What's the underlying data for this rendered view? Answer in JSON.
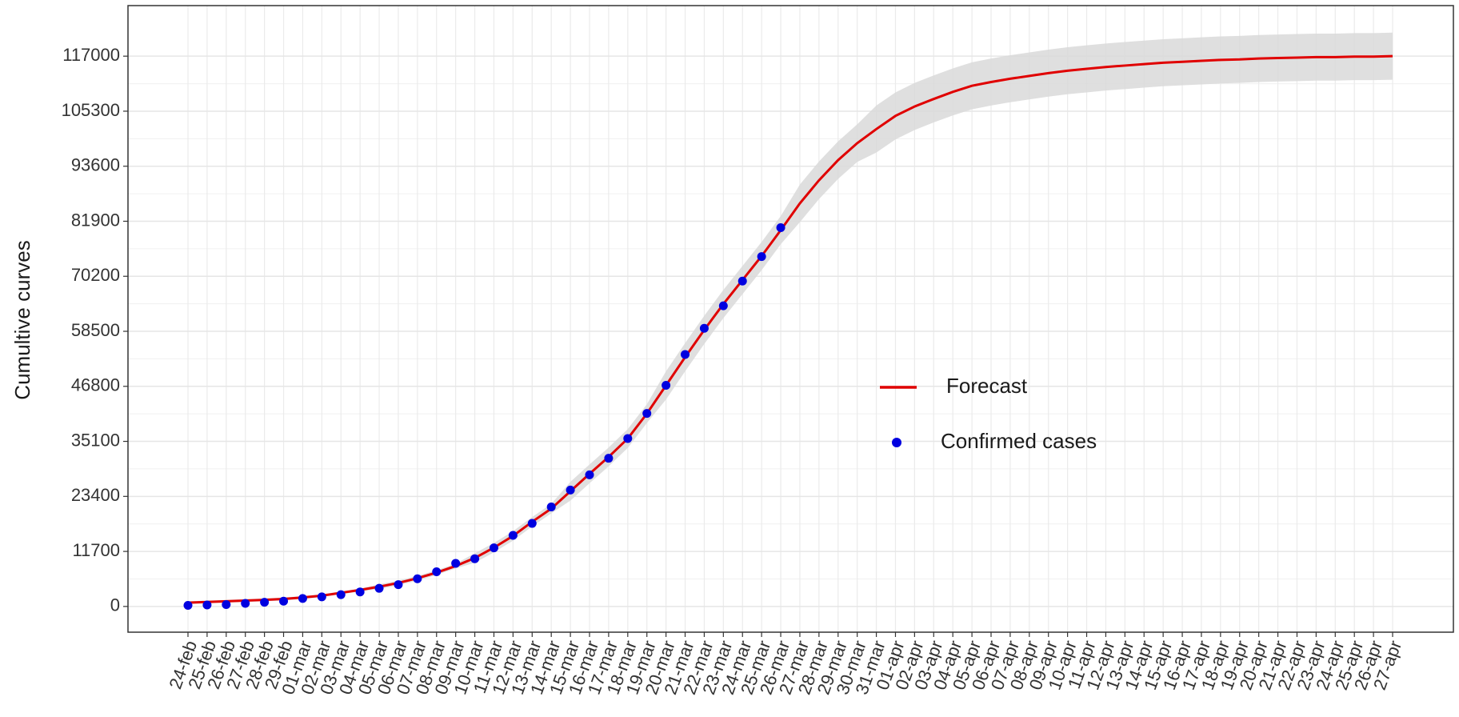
{
  "chart_data": {
    "type": "line",
    "y_label": "Cumultive curves",
    "categories": [
      "24-feb",
      "25-feb",
      "26-feb",
      "27-feb",
      "28-feb",
      "29-feb",
      "01-mar",
      "02-mar",
      "03-mar",
      "04-mar",
      "05-mar",
      "06-mar",
      "07-mar",
      "08-mar",
      "09-mar",
      "10-mar",
      "11-mar",
      "12-mar",
      "13-mar",
      "14-mar",
      "15-mar",
      "16-mar",
      "17-mar",
      "18-mar",
      "19-mar",
      "20-mar",
      "21-mar",
      "22-mar",
      "23-mar",
      "24-mar",
      "25-mar",
      "26-mar",
      "27-mar",
      "28-mar",
      "29-mar",
      "30-mar",
      "31-mar",
      "01-apr",
      "02-apr",
      "03-apr",
      "04-apr",
      "05-apr",
      "06-apr",
      "07-apr",
      "08-apr",
      "09-apr",
      "10-apr",
      "11-apr",
      "12-apr",
      "13-apr",
      "14-apr",
      "15-apr",
      "16-apr",
      "17-apr",
      "18-apr",
      "19-apr",
      "20-apr",
      "21-apr",
      "22-apr",
      "23-apr",
      "24-apr",
      "25-apr",
      "26-apr",
      "27-apr"
    ],
    "series": [
      {
        "name": "Forecast",
        "kind": "line",
        "color": "#e00000",
        "values": [
          800,
          950,
          1100,
          1250,
          1400,
          1600,
          1900,
          2300,
          2900,
          3500,
          4200,
          5000,
          6000,
          7200,
          8600,
          10300,
          12500,
          15000,
          18000,
          20800,
          24500,
          28200,
          31800,
          35700,
          41000,
          47000,
          53000,
          58800,
          64300,
          69400,
          74500,
          80000,
          85700,
          90600,
          94900,
          98500,
          101500,
          104300,
          106300,
          107900,
          109400,
          110700,
          111500,
          112200,
          112800,
          113400,
          113900,
          114300,
          114700,
          115000,
          115300,
          115600,
          115800,
          116000,
          116200,
          116300,
          116500,
          116600,
          116700,
          116800,
          116800,
          116900,
          116900,
          117000
        ]
      },
      {
        "name": "Confirmed cases",
        "kind": "points",
        "color": "#0000e0",
        "values": [
          229,
          322,
          400,
          650,
          888,
          1128,
          1694,
          2036,
          2502,
          3089,
          3858,
          4636,
          5883,
          7375,
          9172,
          10149,
          12462,
          15113,
          17660,
          21157,
          24747,
          27980,
          31506,
          35713,
          41035,
          47021,
          53578,
          59138,
          63927,
          69176,
          74386,
          80539,
          null,
          null,
          null,
          null,
          null,
          null,
          null,
          null,
          null,
          null,
          null,
          null,
          null,
          null,
          null,
          null,
          null,
          null,
          null,
          null,
          null,
          null,
          null,
          null,
          null,
          null,
          null,
          null,
          null,
          null,
          null,
          null
        ]
      }
    ],
    "band": {
      "color": "#d9d9d9",
      "upper": [
        1100,
        1250,
        1400,
        1550,
        1700,
        1900,
        2200,
        2600,
        3200,
        3800,
        4700,
        5500,
        6500,
        7700,
        9100,
        11300,
        13500,
        16000,
        19000,
        21800,
        26500,
        30200,
        33800,
        37700,
        43000,
        50000,
        56000,
        61800,
        67300,
        72400,
        77500,
        83000,
        89700,
        94600,
        98900,
        102500,
        106500,
        109300,
        111300,
        112900,
        114400,
        115700,
        116500,
        117200,
        117800,
        118400,
        118900,
        119300,
        119700,
        120000,
        120300,
        120600,
        120800,
        121000,
        121200,
        121300,
        121500,
        121600,
        121700,
        121800,
        121800,
        121900,
        121900,
        122000
      ],
      "lower": [
        500,
        650,
        800,
        950,
        1100,
        1300,
        1600,
        2000,
        2600,
        3200,
        3700,
        4500,
        5500,
        6700,
        8100,
        9300,
        11500,
        14000,
        17000,
        19800,
        22500,
        26200,
        29800,
        33700,
        39000,
        44000,
        50000,
        55800,
        61300,
        66400,
        71500,
        77000,
        81700,
        86600,
        90900,
        94500,
        96500,
        99300,
        101300,
        102900,
        104400,
        105700,
        106500,
        107200,
        107800,
        108400,
        108900,
        109300,
        109700,
        110000,
        110300,
        110600,
        110800,
        111000,
        111200,
        111300,
        111500,
        111600,
        111700,
        111800,
        111800,
        111900,
        111900,
        112000
      ]
    },
    "ylim": [
      -5470,
      127750
    ],
    "yticks": [
      0,
      11700,
      23400,
      35100,
      46800,
      58500,
      70200,
      81900,
      93600,
      105300,
      117000
    ],
    "grid": true
  }
}
